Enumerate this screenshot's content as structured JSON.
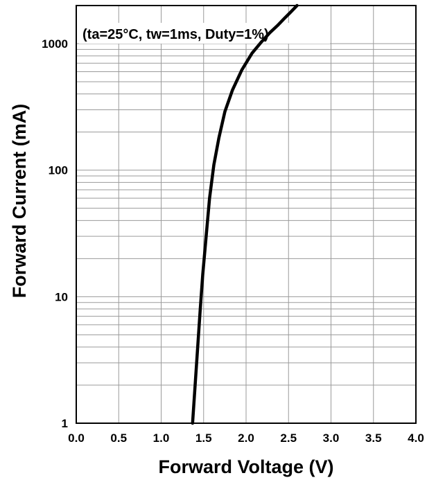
{
  "chart_data": {
    "type": "line",
    "title": "",
    "annotation": "(ta=25°C, tw=1ms, Duty=1%)",
    "xlabel": "Forward Voltage (V)",
    "ylabel": "Forward Current (mA)",
    "xlim": [
      0.0,
      4.0
    ],
    "ylim": [
      1,
      2000
    ],
    "yscale": "log",
    "grid": true,
    "x_ticks": [
      "0.0",
      "0.5",
      "1.0",
      "1.5",
      "2.0",
      "2.5",
      "3.0",
      "3.5",
      "4.0"
    ],
    "y_ticks": [
      "1",
      "10",
      "100",
      "1000"
    ],
    "series": [
      {
        "color": "#000000",
        "x": [
          1.37,
          1.4,
          1.43,
          1.46,
          1.49,
          1.53,
          1.57,
          1.62,
          1.68,
          1.75,
          1.84,
          1.95,
          2.07,
          2.18,
          2.28,
          2.37,
          2.45,
          2.52,
          2.6
        ],
        "y": [
          1,
          2,
          4,
          8,
          15,
          30,
          60,
          110,
          180,
          290,
          430,
          620,
          840,
          1030,
          1220,
          1390,
          1580,
          1760,
          2000
        ]
      }
    ]
  }
}
